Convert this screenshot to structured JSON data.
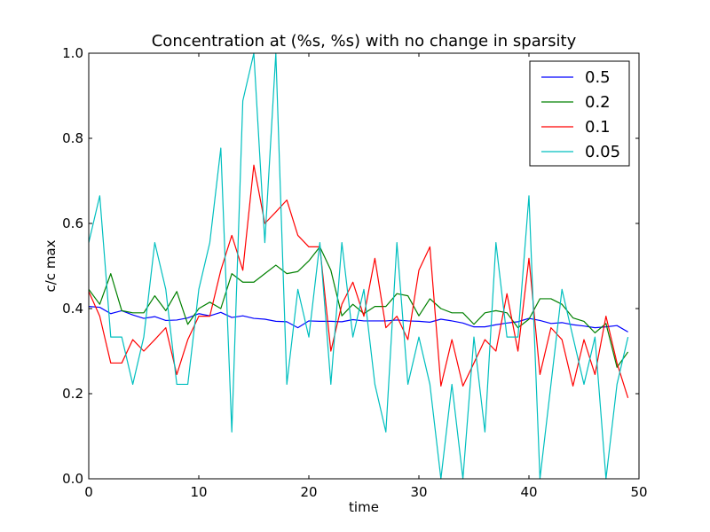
{
  "chart_data": {
    "type": "line",
    "title": "Concentration at (%s, %s) with no change in sparsity",
    "xlabel": "time",
    "ylabel": "c/c max",
    "xlim": [
      0,
      50
    ],
    "ylim": [
      0,
      1.0
    ],
    "xticks": [
      "0",
      "10",
      "20",
      "30",
      "40",
      "50"
    ],
    "yticks": [
      "0.0",
      "0.2",
      "0.4",
      "0.6",
      "0.8",
      "1.0"
    ],
    "grid": false,
    "legend_position": "top-right",
    "x": [
      0,
      1,
      2,
      3,
      4,
      5,
      6,
      7,
      8,
      9,
      10,
      11,
      12,
      13,
      14,
      15,
      16,
      17,
      18,
      19,
      20,
      21,
      22,
      23,
      24,
      25,
      26,
      27,
      28,
      29,
      30,
      31,
      32,
      33,
      34,
      35,
      36,
      37,
      38,
      39,
      40,
      41,
      42,
      43,
      44,
      45,
      46,
      47,
      48,
      49
    ],
    "series": [
      {
        "name": "0.5",
        "color": "#0000ff",
        "values": [
          0.405,
          0.403,
          0.388,
          0.395,
          0.385,
          0.377,
          0.381,
          0.372,
          0.373,
          0.378,
          0.388,
          0.383,
          0.391,
          0.379,
          0.383,
          0.377,
          0.375,
          0.37,
          0.369,
          0.355,
          0.371,
          0.37,
          0.37,
          0.369,
          0.374,
          0.371,
          0.371,
          0.371,
          0.373,
          0.371,
          0.37,
          0.368,
          0.375,
          0.371,
          0.366,
          0.357,
          0.357,
          0.362,
          0.366,
          0.369,
          0.377,
          0.372,
          0.365,
          0.367,
          0.362,
          0.359,
          0.355,
          0.357,
          0.36,
          0.345
        ]
      },
      {
        "name": "0.2",
        "color": "#008000",
        "values": [
          0.445,
          0.41,
          0.482,
          0.395,
          0.39,
          0.39,
          0.43,
          0.395,
          0.44,
          0.363,
          0.4,
          0.415,
          0.4,
          0.482,
          0.462,
          0.462,
          0.482,
          0.502,
          0.482,
          0.487,
          0.512,
          0.545,
          0.49,
          0.383,
          0.41,
          0.388,
          0.405,
          0.405,
          0.435,
          0.43,
          0.383,
          0.423,
          0.4,
          0.39,
          0.39,
          0.363,
          0.39,
          0.395,
          0.39,
          0.355,
          0.375,
          0.423,
          0.423,
          0.41,
          0.378,
          0.37,
          0.343,
          0.365,
          0.262,
          0.298
        ]
      },
      {
        "name": "0.1",
        "color": "#ff0000",
        "values": [
          0.44,
          0.382,
          0.272,
          0.272,
          0.327,
          0.3,
          0.327,
          0.355,
          0.245,
          0.327,
          0.382,
          0.382,
          0.49,
          0.572,
          0.49,
          0.737,
          0.6,
          0.627,
          0.655,
          0.572,
          0.545,
          0.545,
          0.3,
          0.41,
          0.462,
          0.382,
          0.518,
          0.355,
          0.382,
          0.327,
          0.49,
          0.545,
          0.218,
          0.327,
          0.218,
          0.272,
          0.327,
          0.3,
          0.435,
          0.3,
          0.518,
          0.245,
          0.355,
          0.327,
          0.218,
          0.327,
          0.245,
          0.382,
          0.272,
          0.19
        ]
      },
      {
        "name": "0.05",
        "color": "#00bfbf",
        "values": [
          0.555,
          0.665,
          0.333,
          0.333,
          0.222,
          0.333,
          0.555,
          0.445,
          0.222,
          0.222,
          0.445,
          0.555,
          0.777,
          0.11,
          0.888,
          1.0,
          0.555,
          1.0,
          0.222,
          0.445,
          0.333,
          0.555,
          0.222,
          0.555,
          0.333,
          0.445,
          0.222,
          0.11,
          0.555,
          0.222,
          0.333,
          0.222,
          0.0,
          0.222,
          0.0,
          0.333,
          0.11,
          0.555,
          0.333,
          0.333,
          0.665,
          0.0,
          0.222,
          0.445,
          0.333,
          0.222,
          0.333,
          0.0,
          0.222,
          0.333
        ]
      }
    ]
  }
}
